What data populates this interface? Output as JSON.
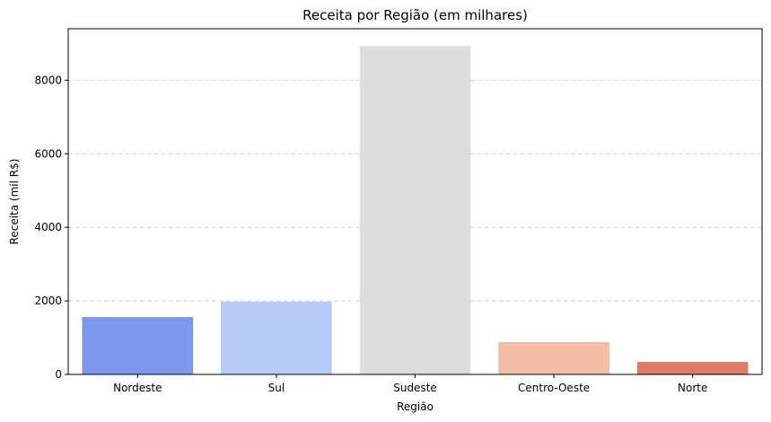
{
  "chart_data": {
    "type": "bar",
    "title": "Receita por Região (em milhares)",
    "xlabel": "Região",
    "ylabel": "Receita (mil R$)",
    "categories": [
      "Nordeste",
      "Sul",
      "Sudeste",
      "Centro-Oeste",
      "Norte"
    ],
    "values": [
      1560,
      1980,
      8930,
      880,
      340
    ],
    "colors": [
      "#7b96ea",
      "#b4cbf7",
      "#dddddd",
      "#f3bca4",
      "#e07a66"
    ],
    "ylim": [
      0,
      9400
    ],
    "yticks": [
      0,
      2000,
      4000,
      6000,
      8000
    ],
    "grid": true
  }
}
